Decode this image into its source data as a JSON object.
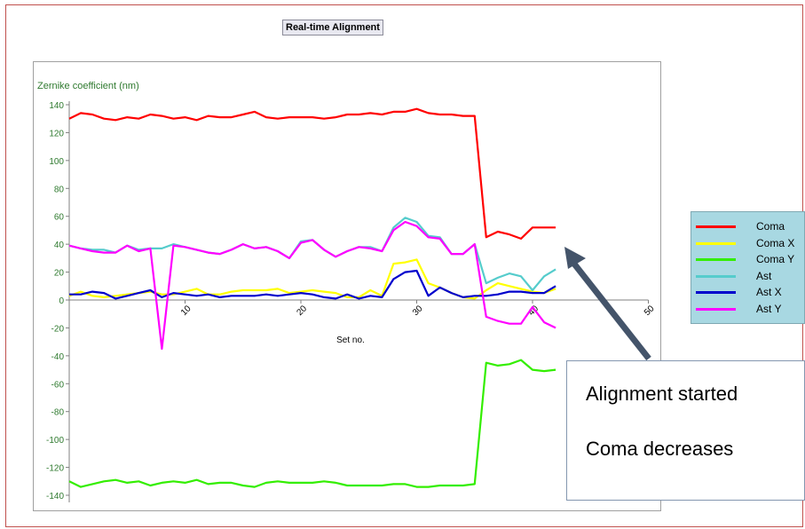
{
  "chart_data": {
    "type": "line",
    "title": "Real-time Alignment",
    "xlabel": "Set no.",
    "ylabel": "Zernike coefficient (nm)",
    "xlim": [
      0,
      50
    ],
    "ylim": [
      -140,
      140
    ],
    "x_ticks": [
      10,
      20,
      30,
      40,
      50
    ],
    "y_ticks": [
      140,
      120,
      100,
      80,
      60,
      40,
      20,
      0,
      -20,
      -40,
      -60,
      -80,
      -100,
      -120,
      -140
    ],
    "grid": false,
    "legend_position": "right",
    "x": [
      0,
      1,
      2,
      3,
      4,
      5,
      6,
      7,
      8,
      9,
      10,
      11,
      12,
      13,
      14,
      15,
      16,
      17,
      18,
      19,
      20,
      21,
      22,
      23,
      24,
      25,
      26,
      27,
      28,
      29,
      30,
      31,
      32,
      33,
      34,
      35,
      36,
      37,
      38,
      39,
      40,
      41,
      42
    ],
    "series": [
      {
        "name": "Coma",
        "color": "#ff0000",
        "values": [
          130,
          134,
          133,
          130,
          129,
          131,
          130,
          133,
          132,
          130,
          131,
          129,
          132,
          131,
          131,
          133,
          135,
          131,
          130,
          131,
          131,
          131,
          130,
          131,
          133,
          133,
          134,
          133,
          135,
          135,
          137,
          134,
          133,
          133,
          132,
          132,
          45,
          49,
          47,
          44,
          52,
          52,
          52
        ]
      },
      {
        "name": "Coma X",
        "color": "#ffff00",
        "values": [
          3,
          6,
          3,
          2,
          3,
          4,
          5,
          6,
          4,
          4,
          6,
          8,
          4,
          4,
          6,
          7,
          7,
          7,
          8,
          5,
          6,
          7,
          6,
          5,
          2,
          2,
          7,
          3,
          26,
          27,
          29,
          12,
          9,
          5,
          2,
          1,
          7,
          12,
          10,
          8,
          6,
          5,
          8
        ]
      },
      {
        "name": "Coma Y",
        "color": "#33ee00",
        "values": [
          -130,
          -134,
          -132,
          -130,
          -129,
          -131,
          -130,
          -133,
          -131,
          -130,
          -131,
          -129,
          -132,
          -131,
          -131,
          -133,
          -134,
          -131,
          -130,
          -131,
          -131,
          -131,
          -130,
          -131,
          -133,
          -133,
          -133,
          -133,
          -132,
          -132,
          -134,
          -134,
          -133,
          -133,
          -133,
          -132,
          -45,
          -47,
          -46,
          -43,
          -50,
          -51,
          -50
        ]
      },
      {
        "name": "Ast",
        "color": "#55cccc",
        "values": [
          39,
          37,
          36,
          36,
          34,
          39,
          36,
          37,
          37,
          40,
          38,
          36,
          34,
          33,
          36,
          40,
          37,
          38,
          35,
          30,
          42,
          43,
          36,
          31,
          35,
          38,
          38,
          35,
          52,
          59,
          56,
          46,
          45,
          33,
          33,
          40,
          12,
          16,
          19,
          17,
          7,
          17,
          22
        ]
      },
      {
        "name": "Ast X",
        "color": "#0000cc",
        "values": [
          4,
          4,
          6,
          5,
          1,
          3,
          5,
          7,
          2,
          5,
          4,
          3,
          4,
          2,
          3,
          3,
          3,
          4,
          3,
          4,
          5,
          4,
          2,
          1,
          4,
          1,
          3,
          2,
          15,
          20,
          21,
          3,
          9,
          5,
          2,
          3,
          3,
          4,
          6,
          6,
          5,
          5,
          10
        ]
      },
      {
        "name": "Ast Y",
        "color": "#ff00ff",
        "values": [
          39,
          37,
          35,
          34,
          34,
          39,
          35,
          37,
          -35,
          39,
          38,
          36,
          34,
          33,
          36,
          40,
          37,
          38,
          35,
          30,
          41,
          43,
          36,
          31,
          35,
          38,
          37,
          35,
          50,
          56,
          53,
          45,
          44,
          33,
          33,
          40,
          -12,
          -15,
          -17,
          -17,
          -5,
          -16,
          -20
        ]
      }
    ]
  },
  "callout": {
    "line1": "Alignment started",
    "line2": "Coma decreases"
  }
}
